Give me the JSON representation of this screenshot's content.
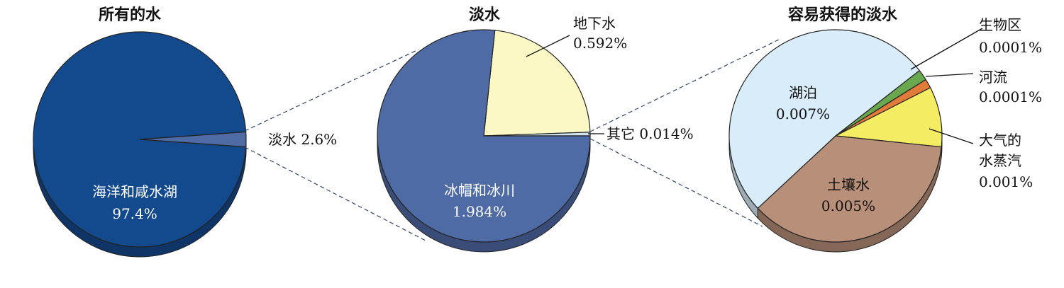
{
  "chart_data": [
    {
      "type": "pie",
      "title": "所有的水",
      "slices": [
        {
          "name": "海洋和咸水湖",
          "value": 97.4,
          "label": "97.4%",
          "color": "#134a8e"
        },
        {
          "name": "淡水",
          "value": 2.6,
          "label": "2.6%",
          "color": "#4f6ba6"
        }
      ]
    },
    {
      "type": "pie",
      "title": "淡水",
      "slices": [
        {
          "name": "冰帽和冰川",
          "value": 1.984,
          "label": "1.984%",
          "color": "#4f6ba6"
        },
        {
          "name": "地下水",
          "value": 0.592,
          "label": "0.592%",
          "color": "#fbf8c5"
        },
        {
          "name": "其它",
          "value": 0.014,
          "label": "0.014%",
          "color": "#cfe4f2"
        }
      ]
    },
    {
      "type": "pie",
      "title": "容易获得的淡水",
      "slices": [
        {
          "name": "湖泊",
          "value": 0.007,
          "label": "0.007%",
          "color": "#d9ecf9"
        },
        {
          "name": "生物区",
          "value": 0.0001,
          "label": "0.0001%",
          "color": "#6aa84f"
        },
        {
          "name": "河流",
          "value": 0.0001,
          "label": "0.0001%",
          "color": "#e07b39"
        },
        {
          "name": "大气的水蒸汽",
          "value": 0.001,
          "label": "0.001%",
          "color": "#f4ec63"
        },
        {
          "name": "土壤水",
          "value": 0.005,
          "label": "0.005%",
          "color": "#b88f78"
        }
      ]
    }
  ],
  "labels": {
    "ocean": [
      "海洋和咸水湖",
      "97.4%"
    ],
    "fresh": "淡水 2.6%",
    "ice": [
      "冰帽和冰川",
      "1.984%"
    ],
    "ground": [
      "地下水",
      "0.592%"
    ],
    "other": "其它 0.014%",
    "lake": [
      "湖泊",
      "0.007%"
    ],
    "bio": [
      "生物区",
      "0.0001%"
    ],
    "river": [
      "河流",
      "0.0001%"
    ],
    "vapor": [
      "大气的",
      "水蒸汽",
      "0.001%"
    ],
    "soil": [
      "土壤水",
      "0.005%"
    ]
  }
}
